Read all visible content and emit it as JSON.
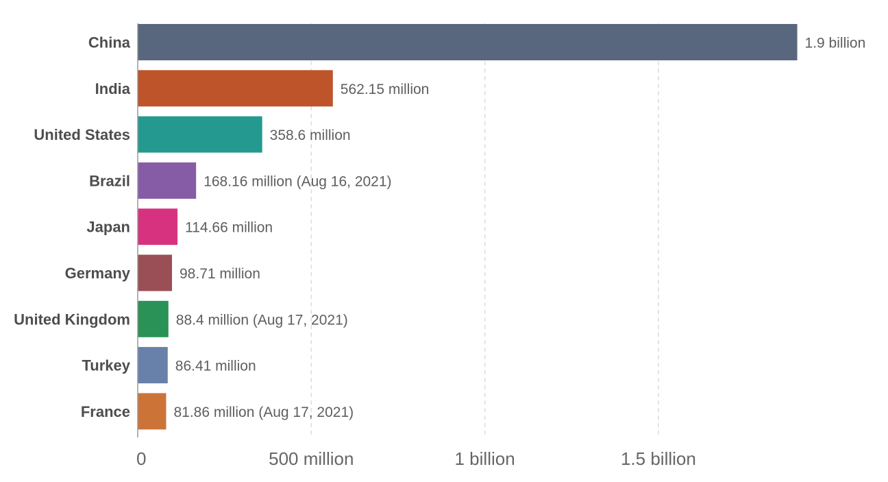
{
  "chart_data": {
    "type": "bar",
    "orientation": "horizontal",
    "categories": [
      "China",
      "India",
      "United States",
      "Brazil",
      "Japan",
      "Germany",
      "United Kingdom",
      "Turkey",
      "France"
    ],
    "values": [
      1900000000,
      562150000,
      358600000,
      168160000,
      114660000,
      98710000,
      88400000,
      86410000,
      81860000
    ],
    "value_labels": [
      "1.9 billion",
      "562.15 million",
      "358.6 million",
      "168.16 million (Aug 16, 2021)",
      "114.66 million",
      "98.71 million",
      "88.4 million (Aug 17, 2021)",
      "86.41 million",
      "81.86 million (Aug 17, 2021)"
    ],
    "colors": [
      "#58677d",
      "#bd542a",
      "#24998f",
      "#865ca6",
      "#d7327f",
      "#9a4e55",
      "#2a9157",
      "#6781aa",
      "#cc7438"
    ],
    "x_ticks": [
      0,
      500000000,
      1000000000,
      1500000000
    ],
    "x_tick_labels": [
      "0",
      "500 million",
      "1 billion",
      "1.5 billion"
    ],
    "xlim": [
      0,
      2000000000
    ],
    "grid": true,
    "title": "",
    "xlabel": "",
    "ylabel": ""
  }
}
